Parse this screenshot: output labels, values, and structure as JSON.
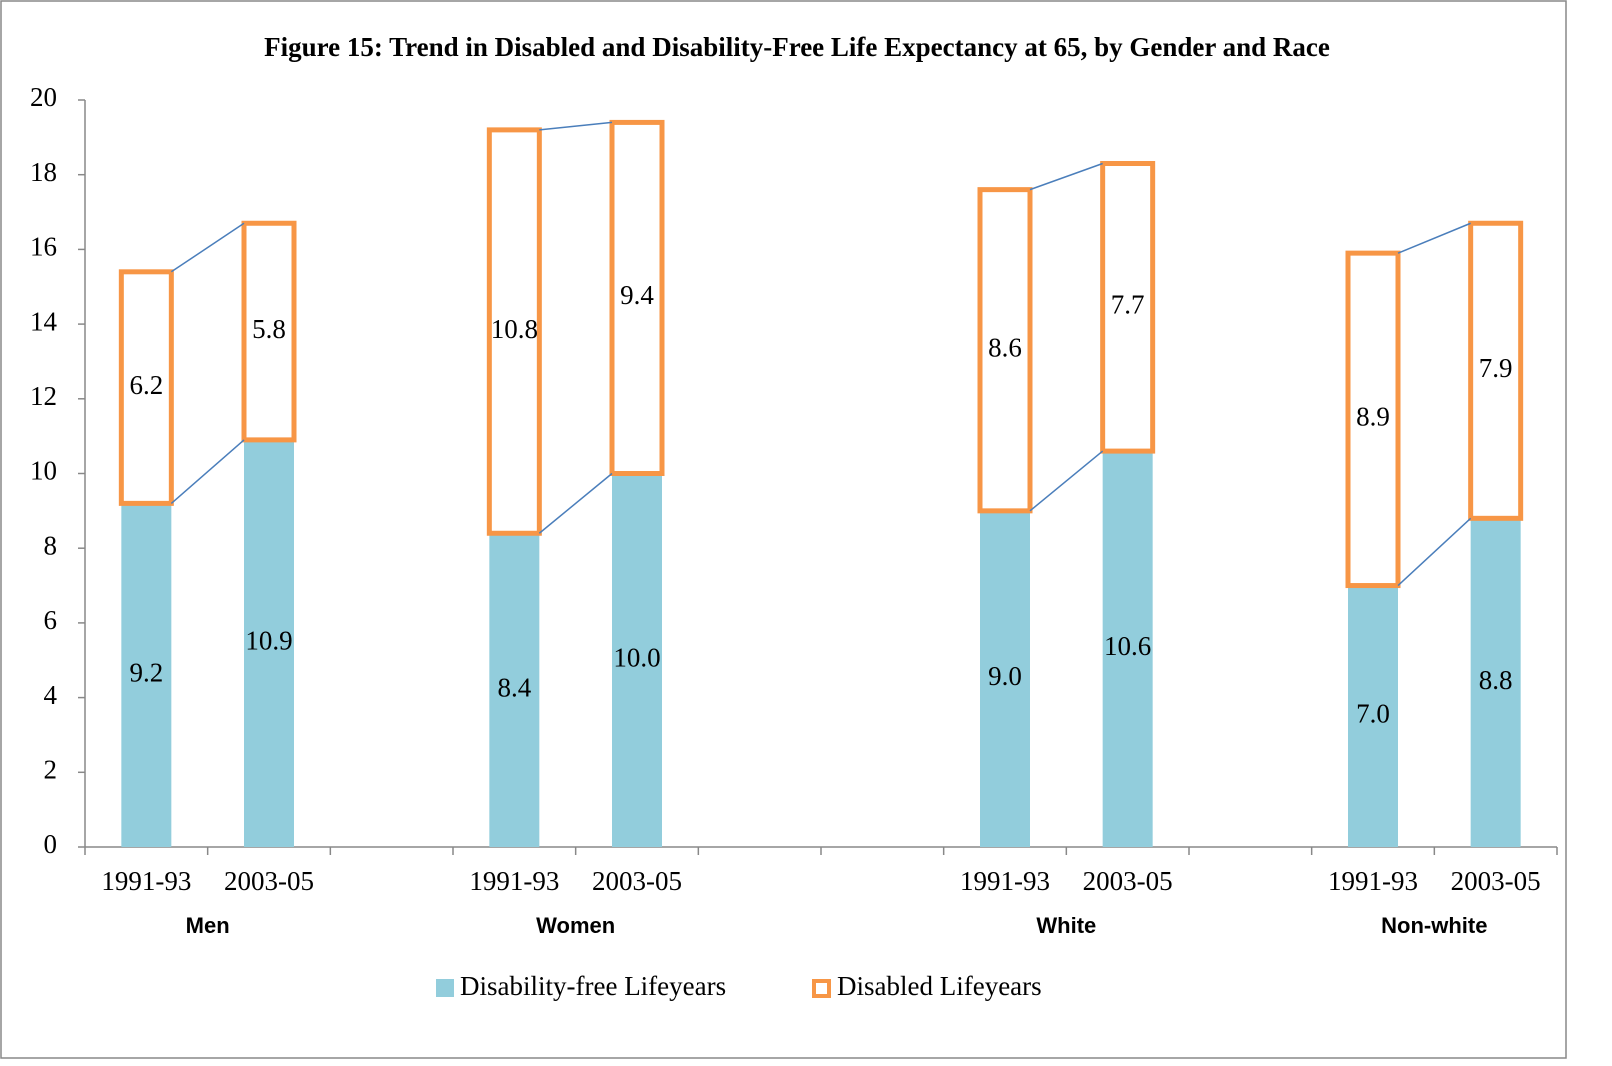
{
  "chart_data": {
    "type": "stacked_bar",
    "title": "Figure 15: Trend in Disabled and Disability-Free Life Expectancy at 65, by Gender and Race",
    "categories": [
      "1991-93",
      "2003-05",
      null,
      "1991-93",
      "2003-05",
      null,
      null,
      "1991-93",
      "2003-05",
      null,
      "1991-93",
      "2003-05"
    ],
    "groups": [
      "Men",
      "Women",
      "White",
      "Non-white"
    ],
    "series": [
      {
        "name": "Disability-free Lifeyears",
        "color": "#92cddc",
        "values": [
          9.2,
          10.9,
          null,
          8.4,
          10.0,
          null,
          null,
          9.0,
          10.6,
          null,
          7.0,
          8.8
        ],
        "value_labels": [
          "9.2",
          "10.9",
          null,
          "8.4",
          "10.0",
          null,
          null,
          "9.0",
          "10.6",
          null,
          "7.0",
          "8.8"
        ]
      },
      {
        "name": "Disabled Lifeyears",
        "color": "#f79646",
        "values": [
          6.2,
          5.8,
          null,
          10.8,
          9.4,
          null,
          null,
          8.6,
          7.7,
          null,
          8.9,
          7.9
        ]
      }
    ],
    "ylim": [
      0,
      20
    ],
    "yticks": [
      0,
      2,
      4,
      6,
      8,
      10,
      12,
      14,
      16,
      18,
      20
    ],
    "grid": false,
    "legend": "bottom"
  }
}
